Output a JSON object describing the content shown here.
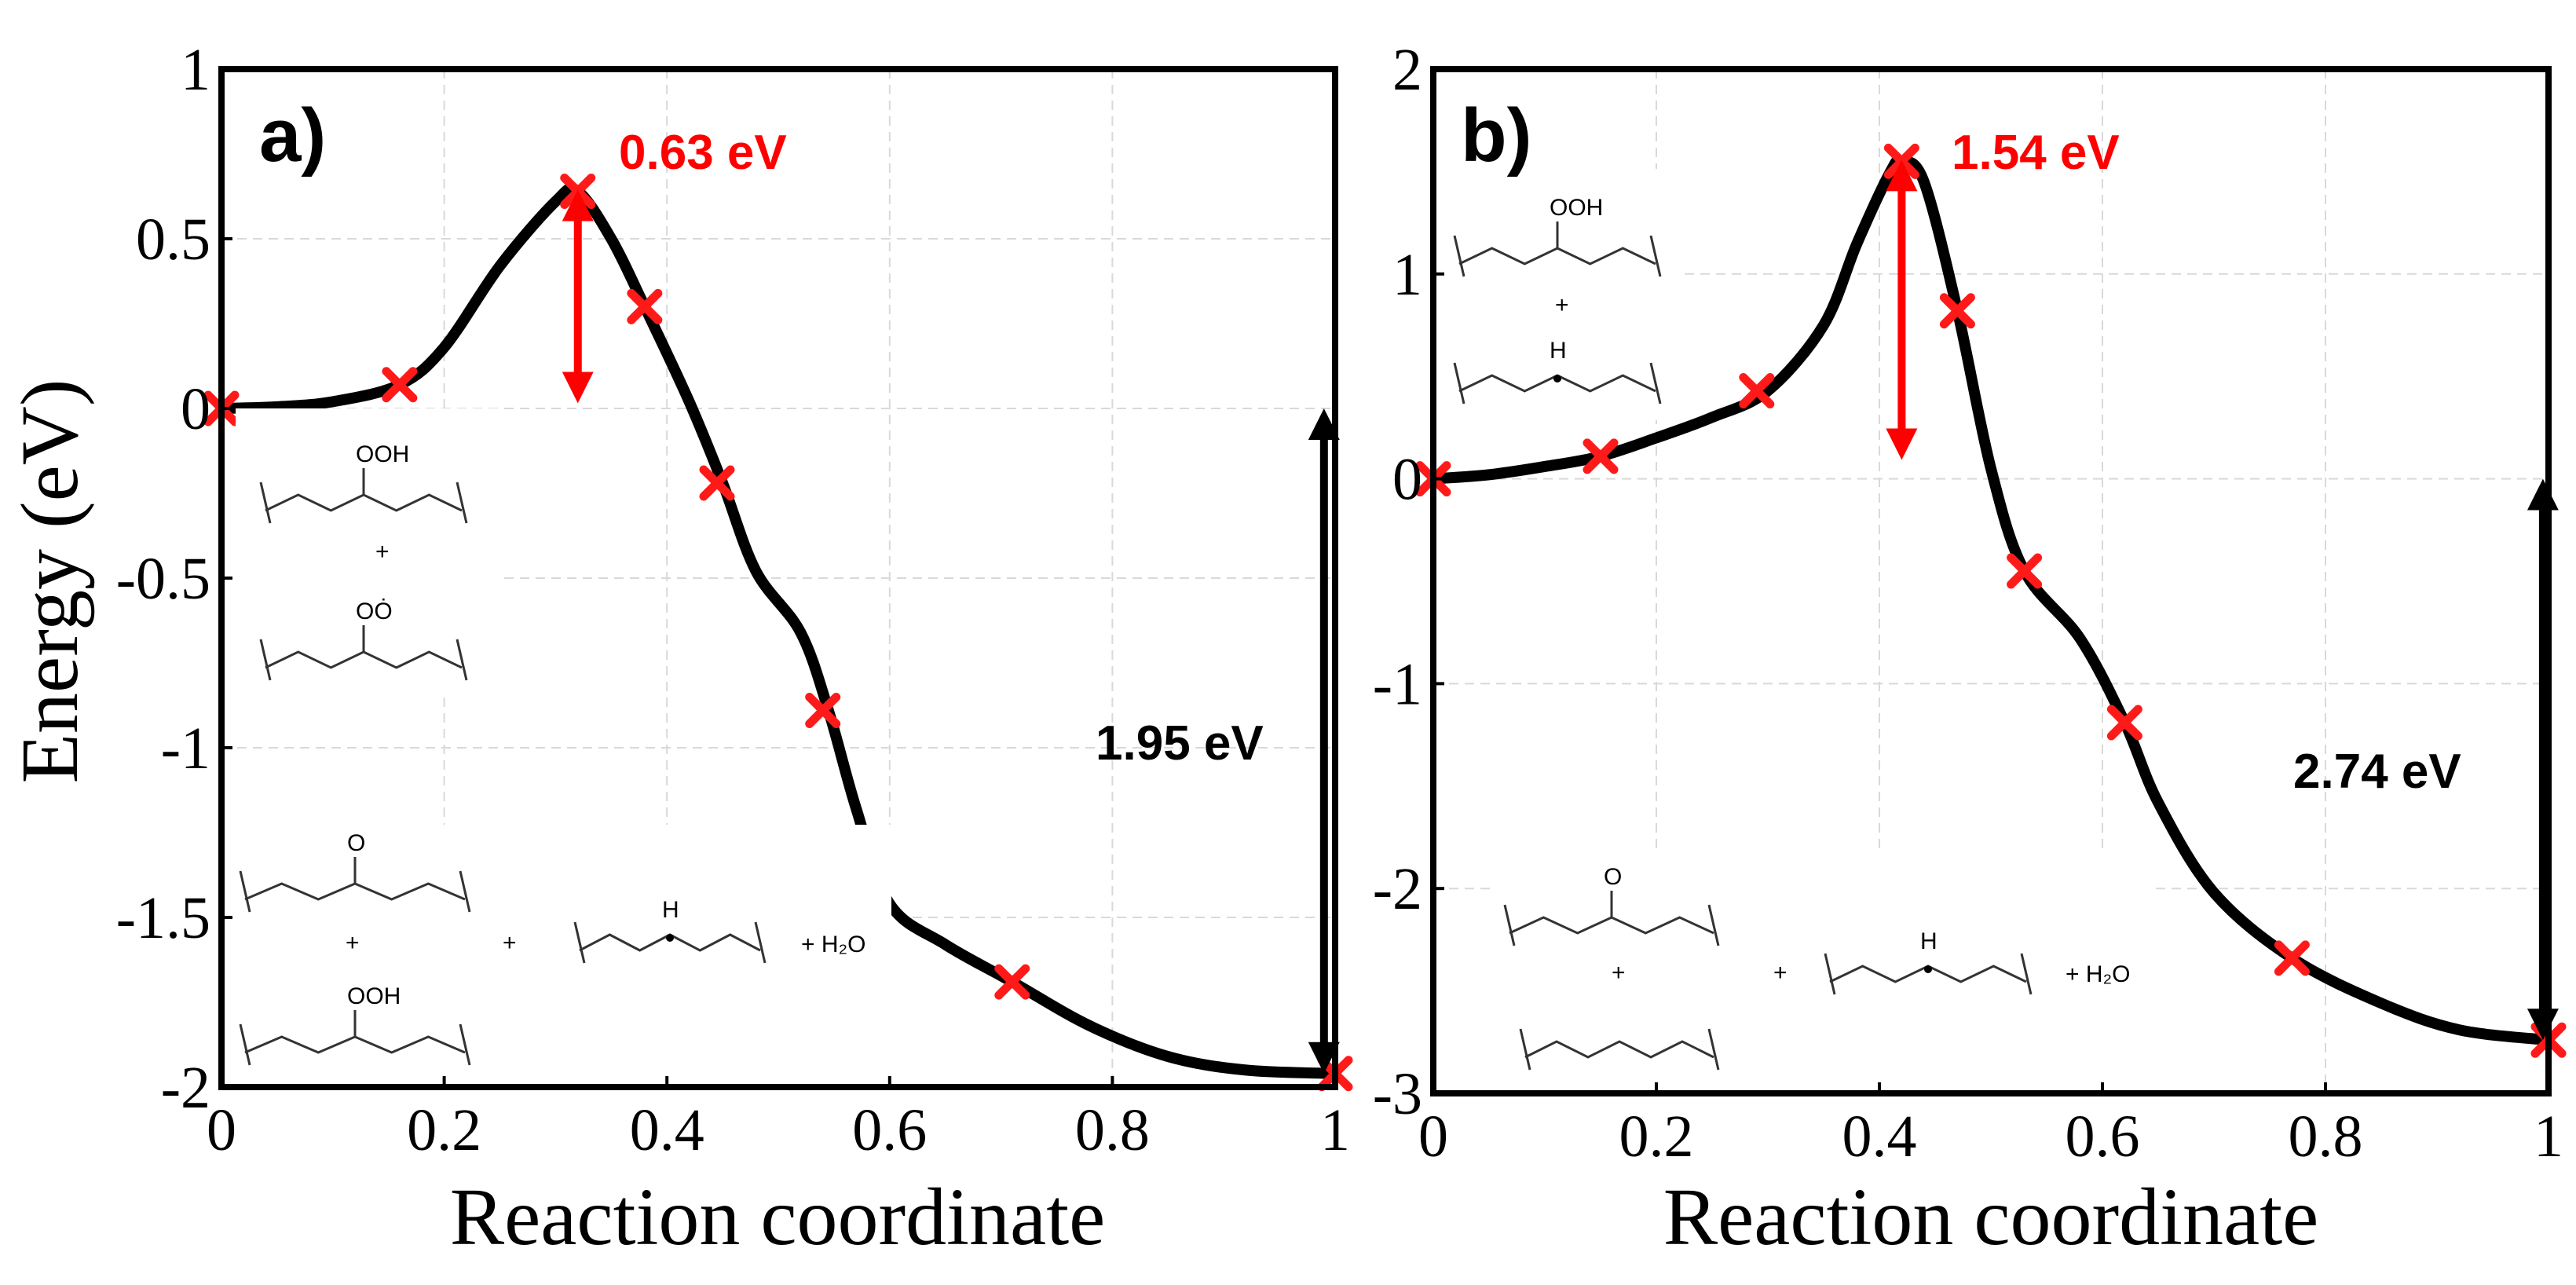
{
  "chart_data": [
    {
      "type": "line",
      "panel_label": "a)",
      "xlabel": "Reaction coordinate",
      "ylabel": "Energy (eV)",
      "xlim": [
        0,
        1
      ],
      "ylim": [
        -2,
        1
      ],
      "xticks": [
        0,
        0.2,
        0.4,
        0.6,
        0.8,
        1
      ],
      "xtick_labels": [
        "0",
        "0.2",
        "0.4",
        "0.6",
        "0.8",
        "1"
      ],
      "yticks": [
        1,
        0.5,
        0,
        -0.5,
        -1,
        -1.5,
        -2
      ],
      "ytick_labels": [
        "1",
        "0.5",
        "0",
        "-0.5",
        "-1",
        "-1.5",
        "-2"
      ],
      "grid": true,
      "curve_x": [
        0,
        0.05,
        0.1,
        0.16,
        0.2,
        0.25,
        0.3,
        0.32,
        0.35,
        0.38,
        0.42,
        0.45,
        0.48,
        0.52,
        0.545,
        0.57,
        0.6,
        0.65,
        0.71,
        0.78,
        0.85,
        0.92,
        1.0
      ],
      "curve_y": [
        0,
        0.005,
        0.02,
        0.07,
        0.18,
        0.42,
        0.61,
        0.64,
        0.5,
        0.3,
        0.02,
        -0.22,
        -0.48,
        -0.66,
        -0.89,
        -1.18,
        -1.46,
        -1.58,
        -1.69,
        -1.82,
        -1.91,
        -1.95,
        -1.96
      ],
      "markers_x": [
        0,
        0.16,
        0.32,
        0.38,
        0.445,
        0.54,
        0.71,
        1.0
      ],
      "markers_y": [
        0,
        0.07,
        0.64,
        0.3,
        -0.22,
        -0.89,
        -1.69,
        -1.96
      ],
      "barrier": {
        "label": "0.63 eV",
        "x": 0.32,
        "y_top": 0.64,
        "y_bottom": 0.02,
        "color": "#ff0000"
      },
      "reaction_energy": {
        "label": "1.95 eV",
        "x": 0.99,
        "y_top": 0,
        "y_bottom": -1.96,
        "color": "#000000"
      },
      "structures": [
        {
          "group": "ooh",
          "text": "OOH"
        },
        {
          "group": "oo",
          "text": "OȮ"
        },
        {
          "group": "ketone",
          "text": "O"
        },
        {
          "group": "ooh2",
          "text": "OOH"
        },
        {
          "group": "radical",
          "text": "H"
        }
      ],
      "water_label": "+ H₂O"
    },
    {
      "type": "line",
      "panel_label": "b)",
      "xlabel": "Reaction coordinate",
      "ylabel": "",
      "xlim": [
        0,
        1
      ],
      "ylim": [
        -3,
        2
      ],
      "xticks": [
        0,
        0.2,
        0.4,
        0.6,
        0.8,
        1
      ],
      "xtick_labels": [
        "0",
        "0.2",
        "0.4",
        "0.6",
        "0.8",
        "1"
      ],
      "yticks": [
        2,
        1,
        0,
        -1,
        -2,
        -3
      ],
      "ytick_labels": [
        "2",
        "1",
        "0",
        "-1",
        "-2",
        "-3"
      ],
      "grid": true,
      "curve_x": [
        0,
        0.05,
        0.1,
        0.15,
        0.2,
        0.25,
        0.3,
        0.35,
        0.38,
        0.41,
        0.42,
        0.44,
        0.47,
        0.5,
        0.53,
        0.58,
        0.62,
        0.65,
        0.7,
        0.77,
        0.85,
        0.92,
        1.0
      ],
      "curve_y": [
        0,
        0.02,
        0.06,
        0.11,
        0.2,
        0.3,
        0.43,
        0.75,
        1.15,
        1.5,
        1.55,
        1.45,
        0.82,
        0.05,
        -0.45,
        -0.78,
        -1.19,
        -1.58,
        -2.02,
        -2.34,
        -2.56,
        -2.69,
        -2.74
      ],
      "markers_x": [
        0,
        0.15,
        0.29,
        0.42,
        0.47,
        0.53,
        0.62,
        0.77,
        1.0
      ],
      "markers_y": [
        0,
        0.11,
        0.43,
        1.55,
        0.82,
        -0.45,
        -1.19,
        -2.34,
        -2.74
      ],
      "barrier": {
        "label": "1.54 eV",
        "x": 0.42,
        "y_top": 1.55,
        "y_bottom": 0.1,
        "color": "#ff0000"
      },
      "reaction_energy": {
        "label": "2.74 eV",
        "x": 0.995,
        "y_top": 0,
        "y_bottom": -2.74,
        "color": "#000000"
      },
      "structures": [
        {
          "group": "ooh",
          "text": "OOH"
        },
        {
          "group": "radical",
          "text": "H"
        },
        {
          "group": "ketone",
          "text": "O"
        },
        {
          "group": "alkane",
          "text": ""
        },
        {
          "group": "radical2",
          "text": "H"
        }
      ],
      "water_label": "+ H₂O"
    }
  ],
  "plus_sign": "+"
}
